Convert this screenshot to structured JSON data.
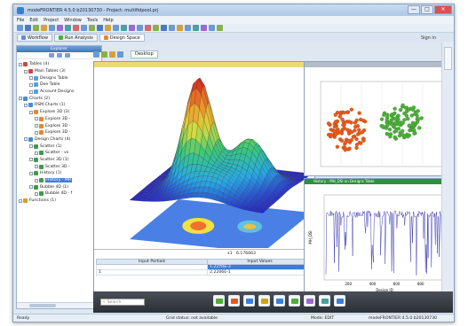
{
  "window": {
    "title": "modeFRONTIER 4.5.0 b20130730 - Project: multifidpool.prj",
    "minimize": "—",
    "maximize": "□",
    "close": "✕"
  },
  "menu": [
    "File",
    "Edit",
    "Project",
    "Window",
    "Tools",
    "Help"
  ],
  "tabs": [
    {
      "label": "Workflow",
      "active": false
    },
    {
      "label": "Run Analysis",
      "active": false
    },
    {
      "label": "Design Space",
      "active": true
    }
  ],
  "signin": "Sign in",
  "sidebar": {
    "title": "Explorer",
    "tree": [
      {
        "label": "Tables (4)",
        "level": 0,
        "icon": "#c84a3a"
      },
      {
        "label": "Main Tables (3)",
        "level": 1,
        "icon": "#c84a3a"
      },
      {
        "label": "Designs Table",
        "level": 2,
        "icon": "#5aa0dc"
      },
      {
        "label": "Doe Table",
        "level": 2,
        "icon": "#5aa0dc"
      },
      {
        "label": "Account Designs",
        "level": 2,
        "icon": "#5aa0dc"
      },
      {
        "label": "Charts (2)",
        "level": 0,
        "icon": "#4a8ad0"
      },
      {
        "label": "RSM Charts (1)",
        "level": 1,
        "icon": "#4a8ad0"
      },
      {
        "label": "Explore 3D (3)",
        "level": 2,
        "icon": "#e08a30"
      },
      {
        "label": "Explore 3D -",
        "level": 3,
        "icon": "#e08a30"
      },
      {
        "label": "Explore 3D -",
        "level": 3,
        "icon": "#e08a30"
      },
      {
        "label": "Explore 3D -",
        "level": 3,
        "icon": "#e08a30"
      },
      {
        "label": "Design Charts (4)",
        "level": 1,
        "icon": "#4a8ad0"
      },
      {
        "label": "Scatter (1)",
        "level": 2,
        "icon": "#3c9a4a"
      },
      {
        "label": "Scatter - vs",
        "level": 3,
        "icon": "#3c9a4a"
      },
      {
        "label": "Scatter 3D (1)",
        "level": 2,
        "icon": "#3c9a4a"
      },
      {
        "label": "Scatter 3D -",
        "level": 3,
        "icon": "#3c9a4a"
      },
      {
        "label": "History (1)",
        "level": 2,
        "icon": "#3c9a4a"
      },
      {
        "label": "History - MH",
        "level": 3,
        "icon": "#3c9a4a",
        "selected": true
      },
      {
        "label": "Bubble 4D (1)",
        "level": 2,
        "icon": "#3c9a4a"
      },
      {
        "label": "Bubble 4D - f",
        "level": 3,
        "icon": "#3c9a4a"
      },
      {
        "label": "Functions (1)",
        "level": 0,
        "icon": "#d4a020"
      }
    ]
  },
  "desktop_tab": "Desktop",
  "readout": {
    "label": "x1",
    "value": "6.176663"
  },
  "table": {
    "headers": [
      "Input Partials",
      "Input Values"
    ],
    "rows": [
      [
        "",
        "1.22YRE-3"
      ],
      [
        "1",
        "2.2206E-1"
      ]
    ]
  },
  "history_title": "History - MH_DSI on Designs Table",
  "history_axes": {
    "xlabel": "Design ID",
    "ylabel": "MH_DSI",
    "xticks": [
      "200",
      "400",
      "600",
      "800"
    ]
  },
  "search": {
    "placeholder": "Search"
  },
  "status": {
    "left": "Ready",
    "middle": "Grid status: not available",
    "mode": "Mode: EDIT",
    "version": "modeFRONTIER 4.5.0 b20130730"
  },
  "colors": {
    "accent": "#3b7ddd",
    "scatter_a": "#e85a1a",
    "scatter_b": "#4caf3a",
    "history_line": "#2a2aa8",
    "panel_green": "#2f8f3a"
  }
}
